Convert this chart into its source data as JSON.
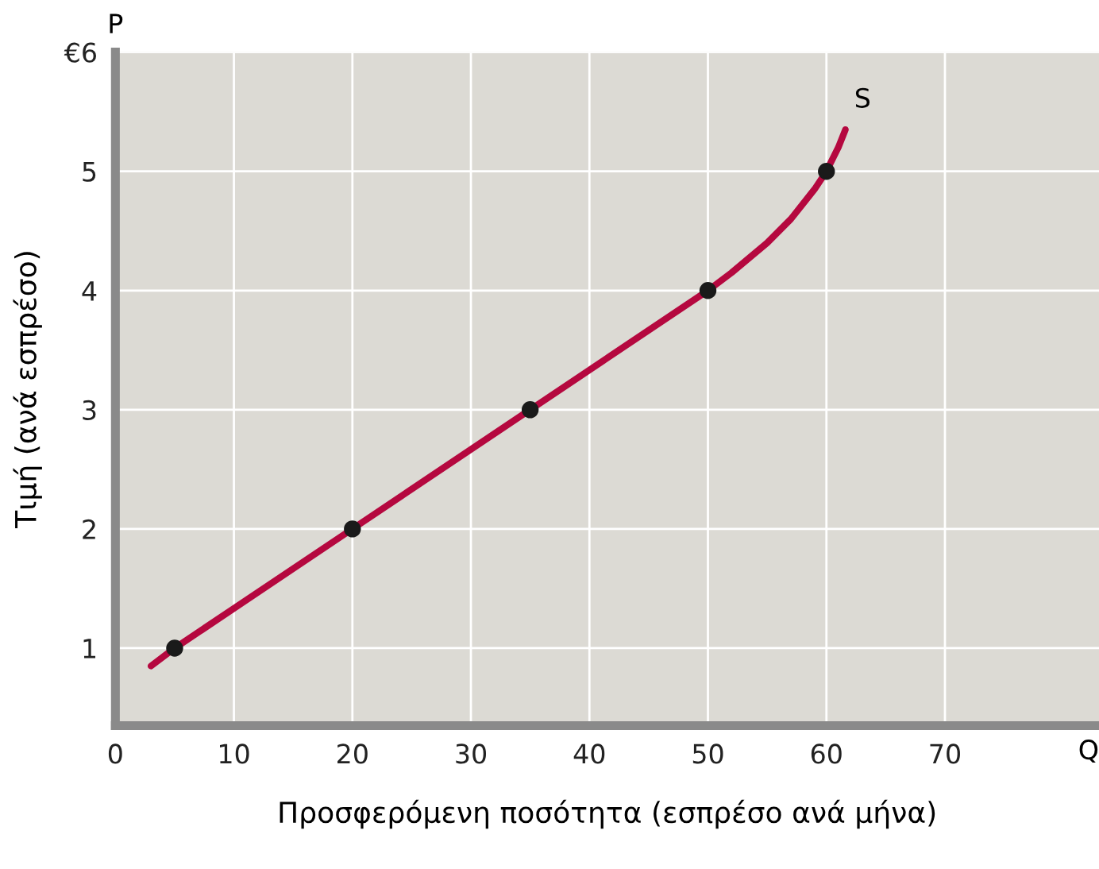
{
  "chart_data": {
    "type": "line",
    "xlabel": "Προσφερόμενη ποσότητα (εσπρέσο ανά μήνα)",
    "ylabel": "Τιμή (ανά εσπρέσο)",
    "series": [
      {
        "color": "#b5083f",
        "marker": "none",
        "x": [
          3,
          5,
          20,
          35,
          50,
          52,
          55,
          57,
          59,
          60,
          61,
          61.6
        ],
        "values": [
          0.85,
          1,
          2,
          3,
          4,
          4.15,
          4.4,
          4.6,
          4.85,
          5,
          5.2,
          5.35
        ]
      },
      {
        "type": "scatter",
        "color": "#1a1a1a",
        "marker": "circle",
        "x": [
          5,
          20,
          35,
          50,
          60
        ],
        "values": [
          1,
          2,
          3,
          4,
          5
        ]
      }
    ],
    "annotations": [
      {
        "text": "S",
        "x": 61.6,
        "y": 5.35
      },
      "P",
      "Q"
    ],
    "xlim": [
      0,
      83
    ],
    "ylim": [
      0.35,
      6
    ],
    "xticks": [
      0,
      10,
      20,
      30,
      40,
      50,
      60,
      70
    ],
    "yticks": [
      1,
      2,
      3,
      4,
      5,
      {
        "value": 6,
        "label": "€6"
      }
    ],
    "grid": true,
    "legend": false
  }
}
